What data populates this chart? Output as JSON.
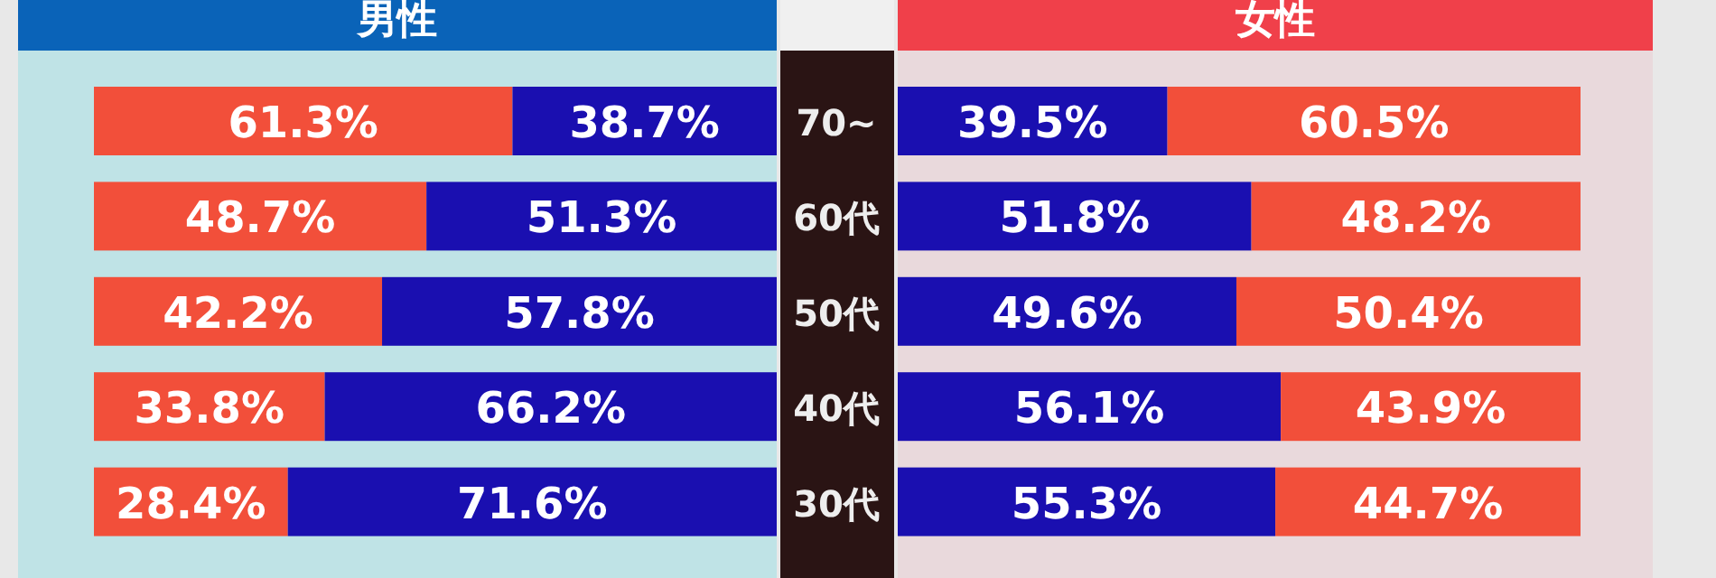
{
  "chart_data": [
    {
      "type": "bar",
      "orientation": "horizontal",
      "stacked": true,
      "title": "男性",
      "categories": [
        "70~",
        "60代",
        "50代",
        "40代",
        "30代"
      ],
      "xlim": [
        0,
        100
      ],
      "tick_labels": "y",
      "series": [
        {
          "color": "#f24f3a",
          "values": [
            61.3,
            48.7,
            42.2,
            33.8,
            28.4
          ],
          "value_labels": [
            "61.3%",
            "48.7%",
            "42.2%",
            "33.8%",
            "28.4%"
          ]
        },
        {
          "color": "#1a0fb0",
          "values": [
            38.7,
            51.3,
            57.8,
            66.2,
            71.6
          ],
          "value_labels": [
            "38.7%",
            "51.3%",
            "57.8%",
            "66.2%",
            "71.6%"
          ]
        }
      ]
    },
    {
      "type": "bar",
      "orientation": "horizontal",
      "stacked": true,
      "title": "女性",
      "categories": [
        null,
        null,
        null,
        null,
        null
      ],
      "xlim": [
        0,
        100
      ],
      "series": [
        {
          "color": "#1a0fb0",
          "values": [
            39.5,
            51.8,
            49.6,
            56.1,
            55.3
          ],
          "value_labels": [
            "39.5%",
            "51.8%",
            "49.6%",
            "56.1%",
            "55.3%"
          ]
        },
        {
          "color": "#f24f3a",
          "values": [
            60.5,
            48.2,
            50.4,
            43.9,
            44.7
          ],
          "value_labels": [
            "60.5%",
            "48.2%",
            "50.4%",
            "43.9%",
            "44.7%"
          ]
        }
      ]
    }
  ]
}
